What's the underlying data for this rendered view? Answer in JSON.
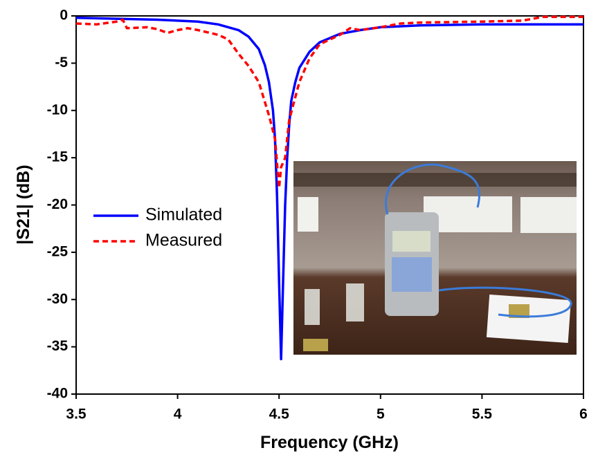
{
  "chart_data": {
    "type": "line",
    "x_label": "Frequency (GHz)",
    "y_label": "|S21| (dB)",
    "xlim": [
      3.5,
      6
    ],
    "ylim": [
      -40,
      0
    ],
    "xticks": [
      3.5,
      4,
      4.5,
      5,
      5.5,
      6
    ],
    "yticks": [
      -40,
      -35,
      -30,
      -25,
      -20,
      -15,
      -10,
      -5,
      0
    ],
    "legend": "left",
    "series": [
      {
        "name": "Simulated",
        "color": "#0000ff",
        "dash": "solid",
        "x": [
          3.5,
          3.7,
          3.9,
          4.1,
          4.2,
          4.3,
          4.35,
          4.4,
          4.43,
          4.45,
          4.47,
          4.48,
          4.49,
          4.5,
          4.51,
          4.52,
          4.53,
          4.54,
          4.55,
          4.56,
          4.58,
          4.6,
          4.65,
          4.7,
          4.8,
          4.9,
          5.0,
          5.2,
          5.5,
          6.0
        ],
        "values": [
          -0.2,
          -0.3,
          -0.4,
          -0.6,
          -0.9,
          -1.5,
          -2.2,
          -3.5,
          -5.2,
          -7,
          -10,
          -13,
          -19,
          -28,
          -36.3,
          -28,
          -20,
          -15,
          -11.5,
          -9,
          -7,
          -5.5,
          -3.8,
          -2.8,
          -1.9,
          -1.5,
          -1.2,
          -1.0,
          -0.9,
          -0.9
        ]
      },
      {
        "name": "Measured",
        "color": "#ff0000",
        "dash": "dashed",
        "x": [
          3.5,
          3.6,
          3.7,
          3.73,
          3.75,
          3.85,
          3.9,
          3.95,
          4.0,
          4.05,
          4.1,
          4.2,
          4.25,
          4.3,
          4.35,
          4.4,
          4.45,
          4.48,
          4.5,
          4.51,
          4.53,
          4.55,
          4.6,
          4.65,
          4.7,
          4.8,
          4.85,
          4.9,
          5.0,
          5.1,
          5.2,
          5.5,
          5.7,
          5.8,
          6.0
        ],
        "values": [
          -0.8,
          -0.9,
          -0.6,
          -0.4,
          -1.3,
          -1.2,
          -1.4,
          -1.8,
          -1.5,
          -1.3,
          -1.5,
          -2.0,
          -2.5,
          -4.0,
          -5.3,
          -7,
          -10.5,
          -13,
          -18.2,
          -16,
          -15,
          -11,
          -7,
          -4.5,
          -3.0,
          -2.0,
          -1.3,
          -1.5,
          -1.2,
          -0.8,
          -0.7,
          -0.6,
          -0.5,
          -0.1,
          -0.1
        ]
      }
    ]
  }
}
